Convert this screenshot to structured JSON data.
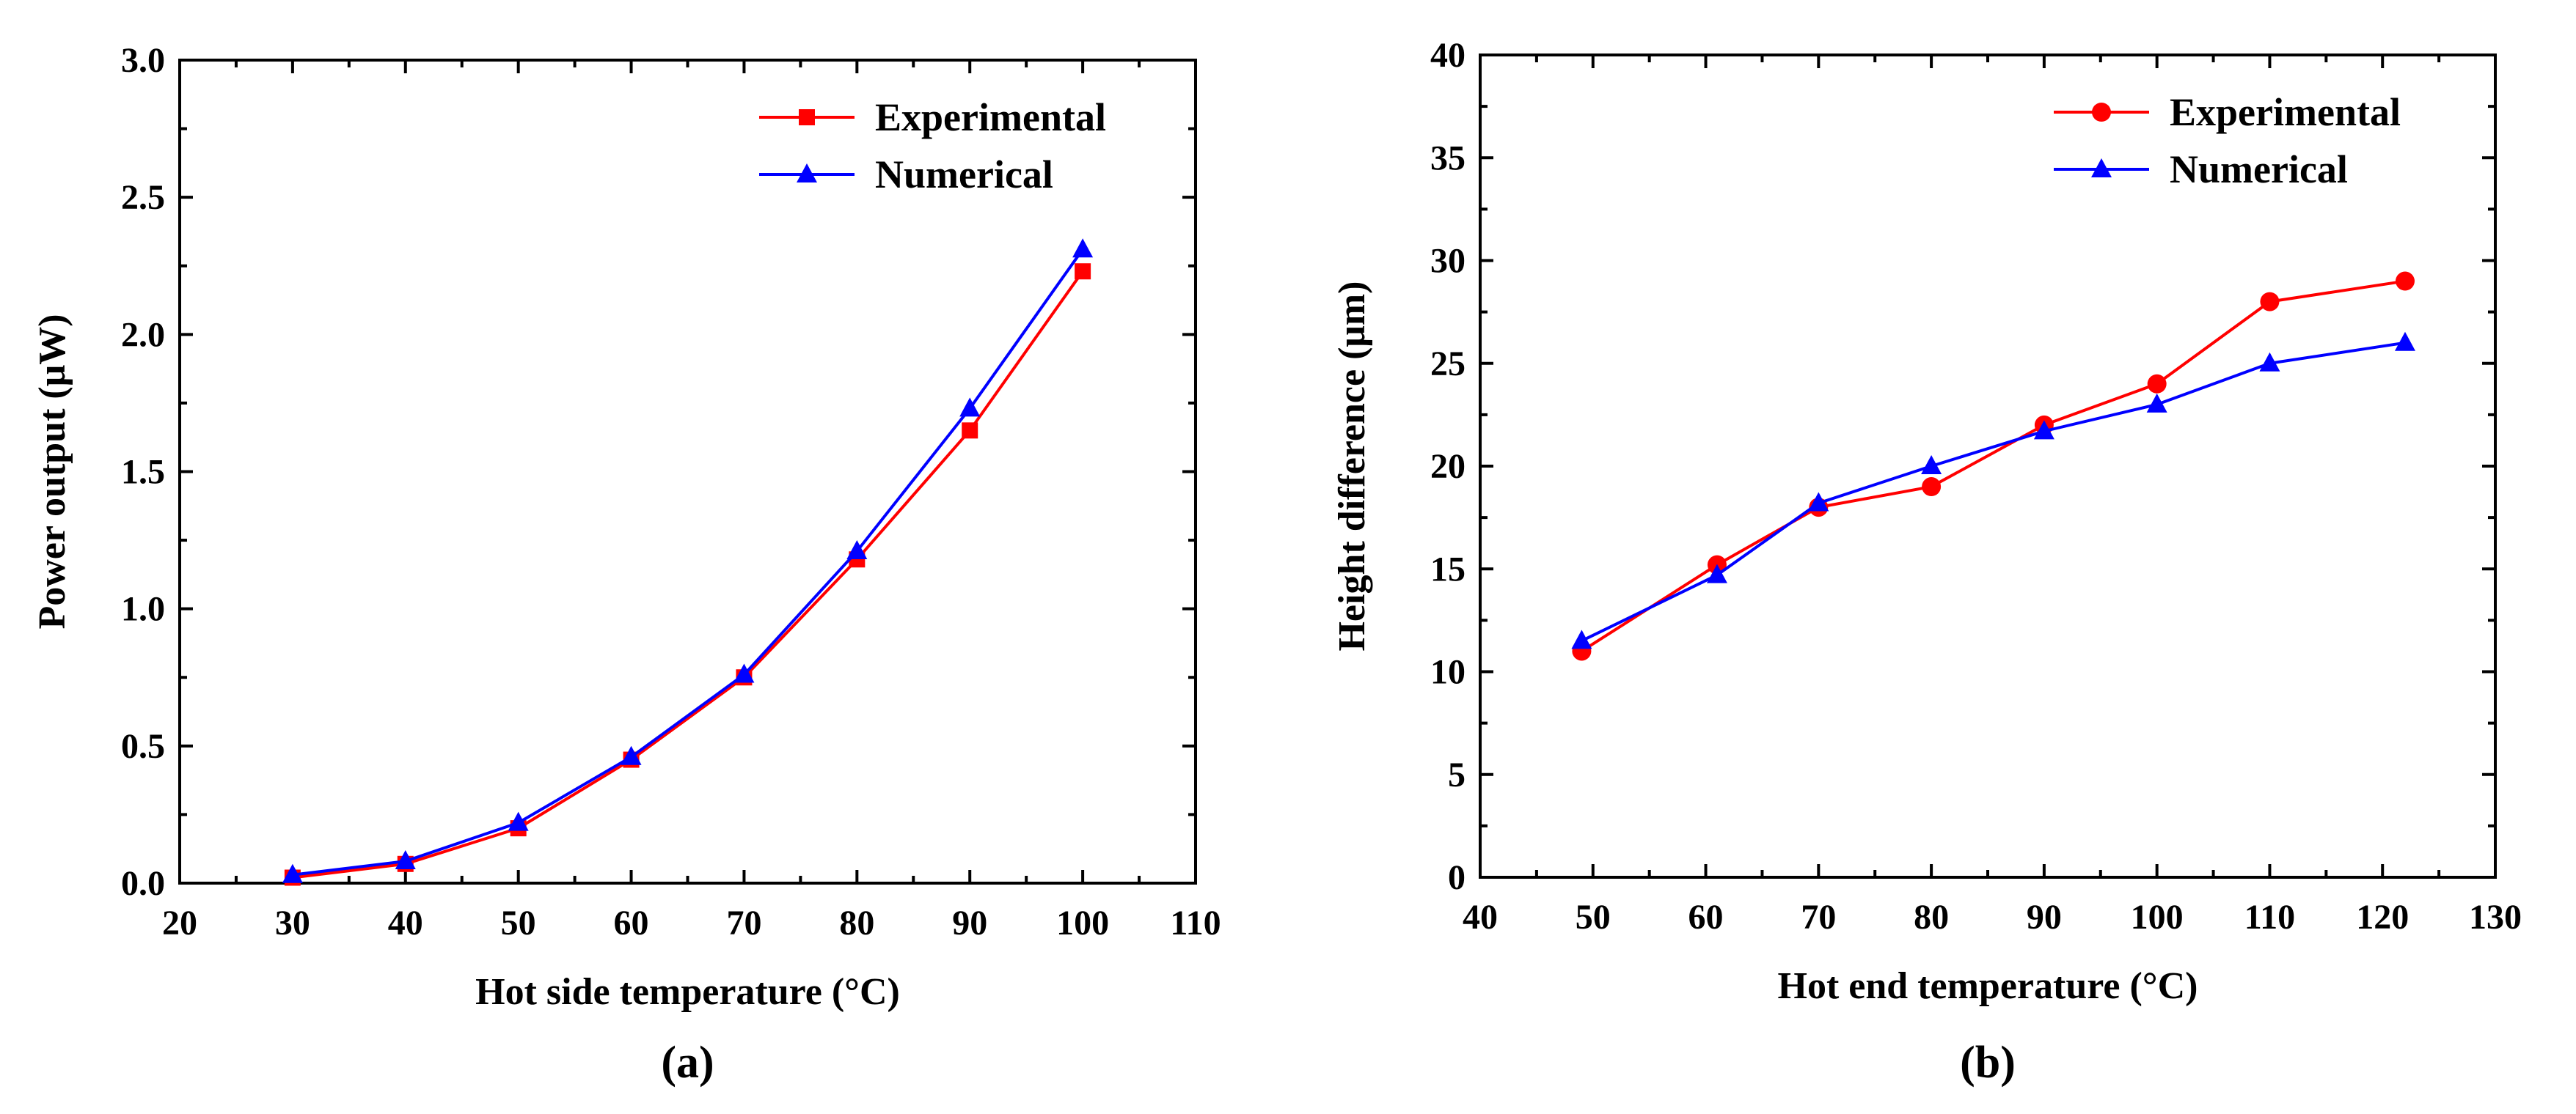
{
  "chart_data": [
    {
      "type": "line",
      "panel_label": "(a)",
      "xlabel": "Hot side temperature (°C)",
      "ylabel": "Power output (μW)",
      "xlim": [
        20,
        110
      ],
      "ylim": [
        0,
        3.0
      ],
      "xticks": [
        20,
        30,
        40,
        50,
        60,
        70,
        80,
        90,
        100,
        110
      ],
      "yticks": [
        0,
        0.5,
        1.0,
        1.5,
        2.0,
        2.5,
        3.0
      ],
      "xtick_labels": [
        "20",
        "30",
        "40",
        "50",
        "60",
        "70",
        "80",
        "90",
        "100",
        "110"
      ],
      "ytick_labels": [
        "0.0",
        "0.5",
        "1.0",
        "1.5",
        "2.0",
        "2.5",
        "3.0"
      ],
      "legend_position": "top-right",
      "grid": false,
      "series": [
        {
          "name": "Experimental",
          "color": "#ff0000",
          "marker": "square",
          "x": [
            30,
            40,
            50,
            60,
            70,
            80,
            90,
            100
          ],
          "y": [
            0.02,
            0.07,
            0.2,
            0.45,
            0.75,
            1.18,
            1.65,
            2.23
          ]
        },
        {
          "name": "Numerical",
          "color": "#0000ff",
          "marker": "triangle",
          "x": [
            30,
            40,
            50,
            60,
            70,
            80,
            90,
            100
          ],
          "y": [
            0.03,
            0.08,
            0.22,
            0.46,
            0.76,
            1.21,
            1.73,
            2.31
          ]
        }
      ]
    },
    {
      "type": "line",
      "panel_label": "(b)",
      "xlabel": "Hot end temperature (°C)",
      "ylabel": "Height difference (μm)",
      "xlim": [
        40,
        130
      ],
      "ylim": [
        0,
        40
      ],
      "xticks": [
        40,
        50,
        60,
        70,
        80,
        90,
        100,
        110,
        120,
        130
      ],
      "yticks": [
        0,
        5,
        10,
        15,
        20,
        25,
        30,
        35,
        40
      ],
      "xtick_labels": [
        "40",
        "50",
        "60",
        "70",
        "80",
        "90",
        "100",
        "110",
        "120",
        "130"
      ],
      "ytick_labels": [
        "0",
        "5",
        "10",
        "15",
        "20",
        "25",
        "30",
        "35",
        "40"
      ],
      "legend_position": "top-right",
      "grid": false,
      "series": [
        {
          "name": "Experimental",
          "color": "#ff0000",
          "marker": "circle",
          "x": [
            49,
            61,
            70,
            80,
            90,
            100,
            110,
            122
          ],
          "y": [
            11,
            15.2,
            18,
            19,
            22,
            24,
            28,
            29
          ]
        },
        {
          "name": "Numerical",
          "color": "#0000ff",
          "marker": "triangle",
          "x": [
            49,
            61,
            70,
            80,
            90,
            100,
            110,
            122
          ],
          "y": [
            11.5,
            14.7,
            18.2,
            20,
            21.7,
            23,
            25,
            26
          ]
        }
      ]
    }
  ]
}
